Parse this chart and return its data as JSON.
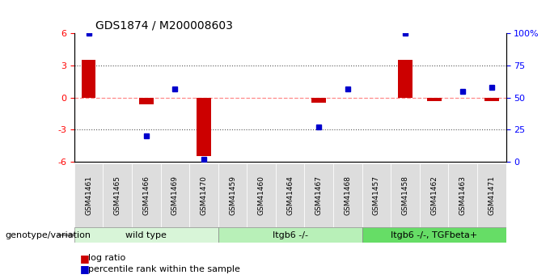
{
  "title": "GDS1874 / M200008603",
  "samples": [
    "GSM41461",
    "GSM41465",
    "GSM41466",
    "GSM41469",
    "GSM41470",
    "GSM41459",
    "GSM41460",
    "GSM41464",
    "GSM41467",
    "GSM41468",
    "GSM41457",
    "GSM41458",
    "GSM41462",
    "GSM41463",
    "GSM41471"
  ],
  "log_ratio": [
    3.5,
    0.0,
    -0.6,
    0.0,
    -5.5,
    0.0,
    0.0,
    0.0,
    -0.5,
    0.0,
    0.0,
    3.5,
    -0.3,
    0.0,
    -0.3
  ],
  "percentile_rank": [
    100,
    -1,
    20,
    57,
    2,
    -1,
    -1,
    -1,
    27,
    57,
    -1,
    100,
    -1,
    55,
    58
  ],
  "groups": [
    {
      "label": "wild type",
      "start": 0,
      "end": 5,
      "color": "#d8f5d8"
    },
    {
      "label": "Itgb6 -/-",
      "start": 5,
      "end": 10,
      "color": "#b8f0b8"
    },
    {
      "label": "Itgb6 -/-, TGFbeta+",
      "start": 10,
      "end": 15,
      "color": "#66dd66"
    }
  ],
  "ylim_left": [
    -6,
    6
  ],
  "ylim_right": [
    0,
    100
  ],
  "yticks_left": [
    -6,
    -3,
    0,
    3,
    6
  ],
  "yticks_right": [
    0,
    25,
    50,
    75,
    100
  ],
  "ytick_labels_right": [
    "0",
    "25",
    "50",
    "75",
    "100%"
  ],
  "bar_color": "#cc0000",
  "dot_color": "#0000cc",
  "zero_line_color": "#ff8888",
  "dotted_line_color": "#555555",
  "bg_color": "#ffffff",
  "bar_width": 0.5
}
